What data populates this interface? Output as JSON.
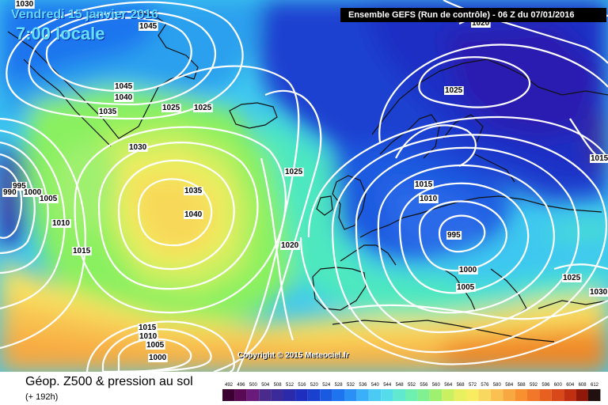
{
  "title": {
    "date": "Vendredi 15 janvier 2016",
    "time": "7:00 locale"
  },
  "run_info": "Ensemble GEFS  (Run de contrôle)  - 06 Z du 07/01/2016",
  "copyright": "Copyright © 2015 Meteociel.fr",
  "footer": {
    "title": "Géop. Z500 & pression au sol",
    "subtitle": "(+ 192h)"
  },
  "legend": {
    "ticks": [
      "492",
      "496",
      "500",
      "504",
      "508",
      "512",
      "516",
      "520",
      "524",
      "528",
      "532",
      "536",
      "540",
      "544",
      "548",
      "552",
      "556",
      "560",
      "564",
      "568",
      "572",
      "576",
      "580",
      "584",
      "588",
      "592",
      "596",
      "600",
      "604",
      "608",
      "612"
    ],
    "colors": [
      "#3d0033",
      "#5a0a55",
      "#6a1a7a",
      "#4a2a8a",
      "#3a2a9a",
      "#2a2aaa",
      "#1e2ebf",
      "#1a40d0",
      "#1a5ae0",
      "#1e74ee",
      "#2a90f5",
      "#3ab0f8",
      "#4acaf5",
      "#55dcea",
      "#60e8d0",
      "#6ef0b0",
      "#80f090",
      "#a0f070",
      "#c8f060",
      "#e8f060",
      "#f8ec60",
      "#fad860",
      "#fac050",
      "#f8a840",
      "#f89030",
      "#f07828",
      "#e86020",
      "#d84818",
      "#c03010",
      "#901808",
      "#201010"
    ]
  },
  "isobar_labels": [
    "1030",
    "1045",
    "1045",
    "1040",
    "1035",
    "1025",
    "1025",
    "1030",
    "995",
    "990",
    "1000",
    "1005",
    "1010",
    "1015",
    "1035",
    "1040",
    "1025",
    "1020",
    "1025",
    "1015",
    "1010",
    "995",
    "1000",
    "1005",
    "1025",
    "1030",
    "1020",
    "1015",
    "1010",
    "1005",
    "1000",
    "1015"
  ],
  "palette": {
    "deep_blue": "#1a2fc4",
    "blue": "#2a6ae8",
    "cyan": "#3ec8f0",
    "aqua_green": "#4ee8b0",
    "green": "#8af060",
    "yellow_green": "#d0f060",
    "yellow": "#f8e060",
    "orange": "#f8b040",
    "dark_orange": "#f08828",
    "purple": "#5a1a70",
    "isobar": "#ffffff",
    "coast": "#111111"
  }
}
